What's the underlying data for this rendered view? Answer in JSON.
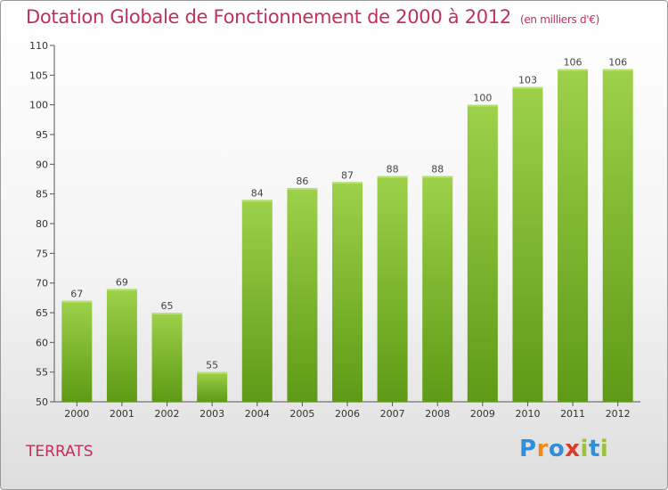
{
  "title": "Dotation Globale de Fonctionnement de 2000 à 2012",
  "unit": "(en milliers d'€)",
  "commune": "TERRATS",
  "logo": {
    "text": "Proxiti",
    "letters": [
      "P",
      "r",
      "o",
      "x",
      "i",
      "t",
      "i"
    ],
    "colors": [
      "#2f8fd8",
      "#f08a1c",
      "#2f8fd8",
      "#e23a2a",
      "#9bc33a",
      "#2f8fd8",
      "#9bc33a"
    ]
  },
  "colors": {
    "bar_light": "#9dd14a",
    "bar_dark": "#5e9a16",
    "accent": "#c0305a"
  },
  "chart_data": {
    "type": "bar",
    "categories": [
      "2000",
      "2001",
      "2002",
      "2003",
      "2004",
      "2005",
      "2006",
      "2007",
      "2008",
      "2009",
      "2010",
      "2011",
      "2012"
    ],
    "values": [
      67,
      69,
      65,
      55,
      84,
      86,
      87,
      88,
      88,
      100,
      103,
      106,
      106
    ],
    "ylim": [
      50,
      110
    ],
    "yticks": [
      50,
      55,
      60,
      65,
      70,
      75,
      80,
      85,
      90,
      95,
      100,
      105,
      110
    ],
    "grid": false
  }
}
